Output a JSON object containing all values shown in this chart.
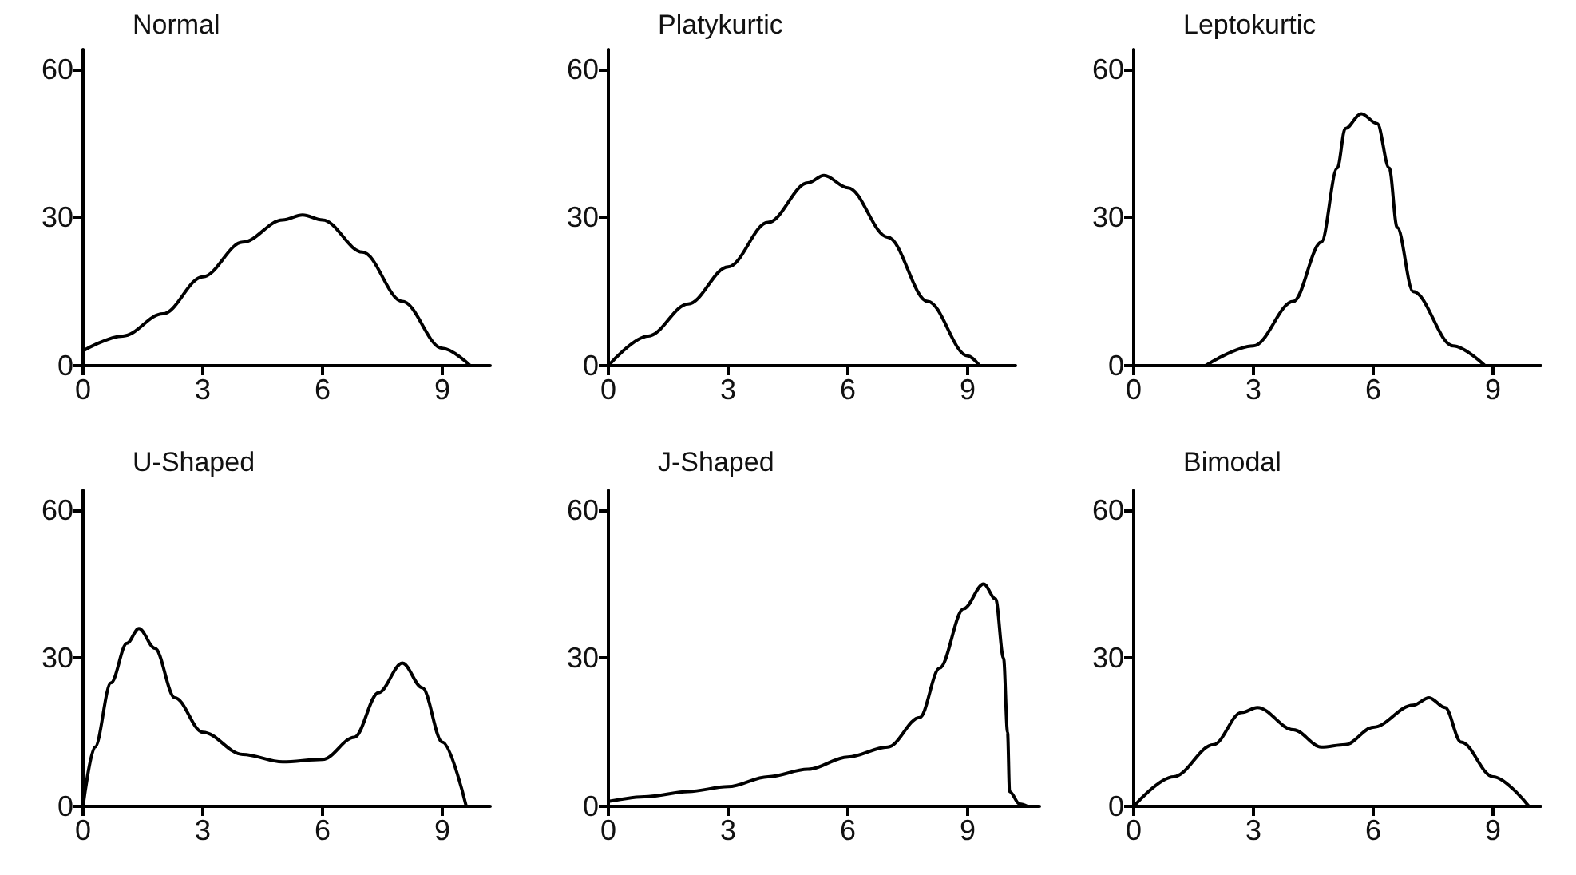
{
  "chart_data": [
    {
      "type": "line",
      "title": "Normal",
      "x": [
        0,
        1,
        2,
        3,
        4,
        5,
        5.5,
        6,
        7,
        8,
        9,
        9.7
      ],
      "values": [
        3,
        6,
        10.5,
        18,
        25,
        29.5,
        30.5,
        29.5,
        23,
        13,
        3.5,
        0
      ],
      "color": "#000000",
      "marker": "none",
      "xlim": [
        0,
        10.2
      ],
      "xticks": [
        0,
        3,
        6,
        9
      ],
      "ylim": [
        0,
        64
      ],
      "yticks": [
        0,
        30,
        60
      ]
    },
    {
      "type": "line",
      "title": "Platykurtic",
      "x": [
        0,
        1,
        2,
        3,
        4,
        5,
        5.4,
        6,
        7,
        8,
        9,
        9.3
      ],
      "values": [
        0,
        6,
        12.5,
        20,
        29,
        37,
        38.5,
        36,
        26,
        13,
        2,
        0
      ],
      "color": "#000000",
      "marker": "none",
      "xlim": [
        0,
        10.2
      ],
      "xticks": [
        0,
        3,
        6,
        9
      ],
      "ylim": [
        0,
        64
      ],
      "yticks": [
        0,
        30,
        60
      ]
    },
    {
      "type": "line",
      "title": "Leptokurtic",
      "x": [
        1.8,
        3,
        4,
        4.7,
        5.1,
        5.3,
        5.7,
        6.1,
        6.4,
        6.6,
        7,
        8,
        8.8
      ],
      "values": [
        0,
        4,
        13,
        25,
        40,
        48,
        51,
        49,
        40,
        28,
        15,
        4,
        0
      ],
      "color": "#000000",
      "marker": "none",
      "xlim": [
        0,
        10.2
      ],
      "xticks": [
        0,
        3,
        6,
        9
      ],
      "ylim": [
        0,
        64
      ],
      "yticks": [
        0,
        30,
        60
      ]
    },
    {
      "type": "line",
      "title": "U-Shaped",
      "x": [
        0,
        0.3,
        0.7,
        1.1,
        1.4,
        1.8,
        2.3,
        3,
        4,
        5,
        6,
        6.8,
        7.4,
        8,
        8.5,
        9,
        9.6
      ],
      "values": [
        0,
        12,
        25,
        33,
        36,
        32,
        22,
        15,
        10.5,
        9,
        9.5,
        14,
        23,
        29,
        24,
        13,
        0
      ],
      "color": "#000000",
      "marker": "none",
      "xlim": [
        0,
        10.2
      ],
      "xticks": [
        0,
        3,
        6,
        9
      ],
      "ylim": [
        0,
        64
      ],
      "yticks": [
        0,
        30,
        60
      ]
    },
    {
      "type": "line",
      "title": "J-Shaped",
      "x": [
        0,
        1,
        2,
        3,
        4,
        5,
        6,
        7,
        7.8,
        8.3,
        8.9,
        9.4,
        9.7,
        9.9,
        10,
        10.05,
        10.3,
        10.5
      ],
      "values": [
        1,
        2,
        3,
        4,
        6,
        7.5,
        10,
        12,
        18,
        28,
        40,
        45,
        42,
        30,
        15,
        3,
        0.5,
        0
      ],
      "color": "#000000",
      "marker": "none",
      "xlim": [
        0,
        10.8
      ],
      "xticks": [
        0,
        3,
        6,
        9
      ],
      "ylim": [
        0,
        64
      ],
      "yticks": [
        0,
        30,
        60
      ]
    },
    {
      "type": "line",
      "title": "Bimodal",
      "x": [
        0,
        1,
        2,
        2.7,
        3.1,
        4,
        4.7,
        5.3,
        6,
        7,
        7.4,
        7.8,
        8.2,
        9,
        9.9
      ],
      "values": [
        0,
        6,
        12.5,
        19,
        20,
        15.5,
        12,
        12.5,
        16,
        20.5,
        22,
        20,
        13,
        6,
        0
      ],
      "color": "#000000",
      "marker": "none",
      "xlim": [
        0,
        10.2
      ],
      "xticks": [
        0,
        3,
        6,
        9
      ],
      "ylim": [
        0,
        64
      ],
      "yticks": [
        0,
        30,
        60
      ]
    }
  ]
}
